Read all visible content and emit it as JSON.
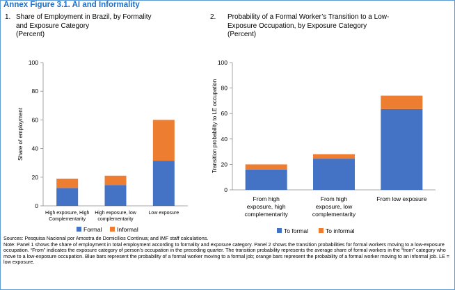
{
  "figure_title": "Annex Figure 3.1. AI and Informality",
  "panel1": {
    "number": "1.",
    "title_lines": [
      "Share of Employment in Brazil, by Formality",
      "and Exposure Category",
      "(Percent)"
    ]
  },
  "panel2": {
    "number": "2.",
    "title_lines": [
      "Probability of a Formal Worker’s Transition to a Low-",
      "Exposure Occupation, by Exposure Category",
      "(Percent)"
    ]
  },
  "colors": {
    "formal": "#4472c4",
    "informal": "#ed7d31",
    "frame": "#5b9bd5",
    "title": "#1f6fc4"
  },
  "chart_data": [
    {
      "type": "bar",
      "stacked": true,
      "categories": [
        [
          "High exposure, High",
          "Complementarity"
        ],
        [
          "High exposure, low",
          "complementarity"
        ],
        [
          "Low exposure"
        ]
      ],
      "series": [
        {
          "name": "Formal",
          "values": [
            12.5,
            14.5,
            31.5
          ]
        },
        {
          "name": "Informal",
          "values": [
            6.5,
            6.5,
            28.5
          ]
        }
      ],
      "ylabel": "Share of employment",
      "ylim": [
        0,
        100
      ],
      "yticks": [
        0,
        20,
        40,
        60,
        80,
        100
      ],
      "legend_position": "bottom",
      "grid": false
    },
    {
      "type": "bar",
      "stacked": true,
      "categories": [
        [
          "From high",
          "exposure, high",
          "complementarity"
        ],
        [
          "From high",
          "exposure, low",
          "complementarity"
        ],
        [
          "From low exposure"
        ]
      ],
      "series": [
        {
          "name": "To formal",
          "values": [
            16,
            24.5,
            63.5
          ]
        },
        {
          "name": "To informal",
          "values": [
            4,
            3.5,
            10.5
          ]
        }
      ],
      "ylabel": "Transition probability to LE occupation",
      "ylim": [
        0,
        100
      ],
      "yticks": [
        0,
        20,
        40,
        60,
        80,
        100
      ],
      "legend_position": "bottom",
      "grid": false
    }
  ],
  "notes": [
    "Sources: Pesquisa Nacional por Amostra de Domicílios Contínua; and IMF staff calculations.",
    "Note: Panel 1 shows the share of employment in total employment according to formality and exposure category. Panel 2 shows the transition probabilities for formal workers moving to a low-exposure occupation. “From” indicates the exposure category of person’s occupation in the preceding quarter. The transition probability represents the average share of formal workers in the “from” category who move to a low-exposure occupation. Blue bars represent the probability of a formal worker moving to a formal job; orange bars represent the probability of a formal worker moving to an informal job. LE = low exposure."
  ]
}
